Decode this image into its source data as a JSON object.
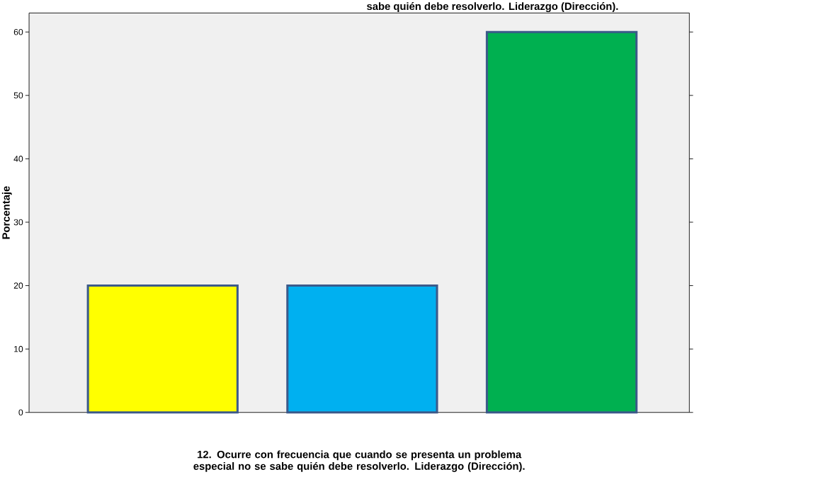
{
  "chart_data": {
    "type": "bar",
    "title": "sabe quién debe resolverlo. Liderazgo (Dirección).",
    "xlabel": "12. Ocurre con frecuencia que cuando se presenta un problema especial no se sabe quién debe resolverlo.  Liderazgo (Dirección).",
    "ylabel": "Porcentaje",
    "categories": [
      null,
      null,
      null
    ],
    "values": [
      20,
      20,
      60
    ],
    "colors": [
      "#ffff00",
      "#00b0f0",
      "#00b050"
    ],
    "ylim": [
      0,
      63
    ],
    "yticks": [
      0,
      10,
      20,
      30,
      40,
      50,
      60
    ],
    "grid": false
  }
}
